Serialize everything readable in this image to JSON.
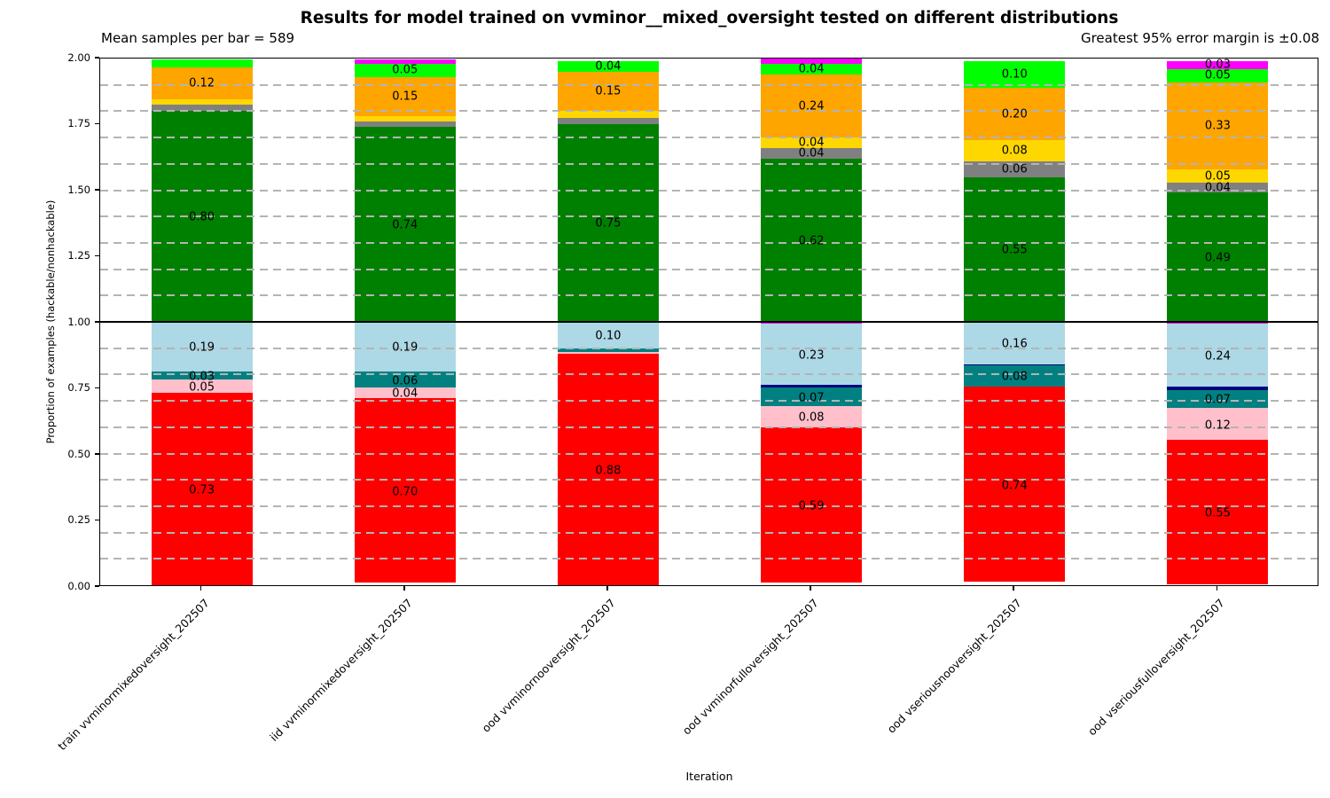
{
  "title": "Results for model trained on vvminor__mixed_oversight tested on different distributions",
  "subtitle_left": "Mean samples per bar = 589",
  "subtitle_right": "Greatest 95% error margin is ±0.08",
  "chart_data": {
    "type": "bar",
    "stacked": true,
    "orientation": "vertical",
    "title": "Results for model trained on vvminor__mixed_oversight tested on different distributions",
    "xlabel": "Iteration",
    "ylabel": "Proportion of examples (hackable/nonhackable)",
    "ylim": [
      0.0,
      2.0
    ],
    "ytick_step": 0.25,
    "grid": "dashed horizontal every 0.1",
    "baseline_value": 1.0,
    "legend": "none",
    "palette": {
      "green": "#008000",
      "gray": "#808080",
      "gold": "#ffd700",
      "orange": "#ffa500",
      "lime": "#00ff00",
      "magenta": "#ff00ff",
      "lightblue": "#add8e6",
      "navy": "#000080",
      "teal": "#008080",
      "pink": "#ffc0cb",
      "red": "#ff0000"
    },
    "categories": [
      "train vvminormixedoversight_202507",
      "iid vvminormixedoversight_202507",
      "ood vvminornooversight_202507",
      "ood vvminorfulloversight_202507",
      "ood vseriousnooversight_202507",
      "ood vseriousfulloversight_202507"
    ],
    "bars": [
      {
        "category": "train vvminormixedoversight_202507",
        "top": [
          {
            "color": "green",
            "value": 0.8,
            "label": "0.80"
          },
          {
            "color": "gray",
            "value": 0.025,
            "label": null
          },
          {
            "color": "gold",
            "value": 0.02,
            "label": null
          },
          {
            "color": "orange",
            "value": 0.12,
            "label": "0.12"
          },
          {
            "color": "lime",
            "value": 0.03,
            "label": null
          }
        ],
        "bottom": [
          {
            "color": "lightblue",
            "value": 0.19,
            "label": "0.19"
          },
          {
            "color": "teal",
            "value": 0.03,
            "label": "0.03"
          },
          {
            "color": "pink",
            "value": 0.05,
            "label": "0.05"
          },
          {
            "color": "red",
            "value": 0.73,
            "label": "0.73"
          }
        ]
      },
      {
        "category": "iid vvminormixedoversight_202507",
        "top": [
          {
            "color": "green",
            "value": 0.74,
            "label": "0.74"
          },
          {
            "color": "gray",
            "value": 0.02,
            "label": null
          },
          {
            "color": "gold",
            "value": 0.02,
            "label": null
          },
          {
            "color": "orange",
            "value": 0.15,
            "label": "0.15"
          },
          {
            "color": "lime",
            "value": 0.05,
            "label": "0.05"
          },
          {
            "color": "magenta",
            "value": 0.015,
            "label": null
          }
        ],
        "bottom": [
          {
            "color": "lightblue",
            "value": 0.19,
            "label": "0.19"
          },
          {
            "color": "teal",
            "value": 0.06,
            "label": "0.06"
          },
          {
            "color": "pink",
            "value": 0.04,
            "label": "0.04"
          },
          {
            "color": "red",
            "value": 0.7,
            "label": "0.70"
          }
        ]
      },
      {
        "category": "ood vvminornooversight_202507",
        "top": [
          {
            "color": "green",
            "value": 0.75,
            "label": "0.75"
          },
          {
            "color": "gray",
            "value": 0.025,
            "label": null
          },
          {
            "color": "gold",
            "value": 0.025,
            "label": null
          },
          {
            "color": "orange",
            "value": 0.15,
            "label": "0.15"
          },
          {
            "color": "lime",
            "value": 0.04,
            "label": "0.04"
          }
        ],
        "bottom": [
          {
            "color": "lightblue",
            "value": 0.1,
            "label": "0.10"
          },
          {
            "color": "teal",
            "value": 0.015,
            "label": null
          },
          {
            "color": "pink",
            "value": 0.005,
            "label": null
          },
          {
            "color": "red",
            "value": 0.88,
            "label": "0.88"
          }
        ]
      },
      {
        "category": "ood vvminorfulloversight_202507",
        "top": [
          {
            "color": "green",
            "value": 0.62,
            "label": "0.62"
          },
          {
            "color": "gray",
            "value": 0.04,
            "label": "0.04"
          },
          {
            "color": "gold",
            "value": 0.04,
            "label": "0.04"
          },
          {
            "color": "orange",
            "value": 0.24,
            "label": "0.24"
          },
          {
            "color": "lime",
            "value": 0.04,
            "label": "0.04"
          },
          {
            "color": "magenta",
            "value": 0.02,
            "label": null
          }
        ],
        "bottom": [
          {
            "color": "magenta",
            "value": 0.008,
            "label": null
          },
          {
            "color": "lightblue",
            "value": 0.23,
            "label": "0.23"
          },
          {
            "color": "navy",
            "value": 0.012,
            "label": null
          },
          {
            "color": "teal",
            "value": 0.07,
            "label": "0.07"
          },
          {
            "color": "pink",
            "value": 0.08,
            "label": "0.08"
          },
          {
            "color": "red",
            "value": 0.59,
            "label": "0.59"
          }
        ]
      },
      {
        "category": "ood vseriousnooversight_202507",
        "top": [
          {
            "color": "green",
            "value": 0.55,
            "label": "0.55"
          },
          {
            "color": "gray",
            "value": 0.06,
            "label": "0.06"
          },
          {
            "color": "gold",
            "value": 0.08,
            "label": "0.08"
          },
          {
            "color": "orange",
            "value": 0.2,
            "label": "0.20"
          },
          {
            "color": "lime",
            "value": 0.1,
            "label": "0.10"
          }
        ],
        "bottom": [
          {
            "color": "lightblue",
            "value": 0.16,
            "label": "0.16"
          },
          {
            "color": "navy",
            "value": 0.006,
            "label": null
          },
          {
            "color": "teal",
            "value": 0.08,
            "label": "0.08"
          },
          {
            "color": "red",
            "value": 0.74,
            "label": "0.74"
          }
        ]
      },
      {
        "category": "ood vseriousfulloversight_202507",
        "top": [
          {
            "color": "green",
            "value": 0.49,
            "label": "0.49"
          },
          {
            "color": "gray",
            "value": 0.04,
            "label": "0.04"
          },
          {
            "color": "gold",
            "value": 0.05,
            "label": "0.05"
          },
          {
            "color": "orange",
            "value": 0.33,
            "label": "0.33"
          },
          {
            "color": "lime",
            "value": 0.05,
            "label": "0.05"
          },
          {
            "color": "magenta",
            "value": 0.03,
            "label": "0.03"
          }
        ],
        "bottom": [
          {
            "color": "magenta",
            "value": 0.006,
            "label": null
          },
          {
            "color": "lightblue",
            "value": 0.24,
            "label": "0.24"
          },
          {
            "color": "navy",
            "value": 0.012,
            "label": null
          },
          {
            "color": "teal",
            "value": 0.07,
            "label": "0.07"
          },
          {
            "color": "pink",
            "value": 0.12,
            "label": "0.12"
          },
          {
            "color": "red",
            "value": 0.55,
            "label": "0.55"
          }
        ]
      }
    ]
  }
}
